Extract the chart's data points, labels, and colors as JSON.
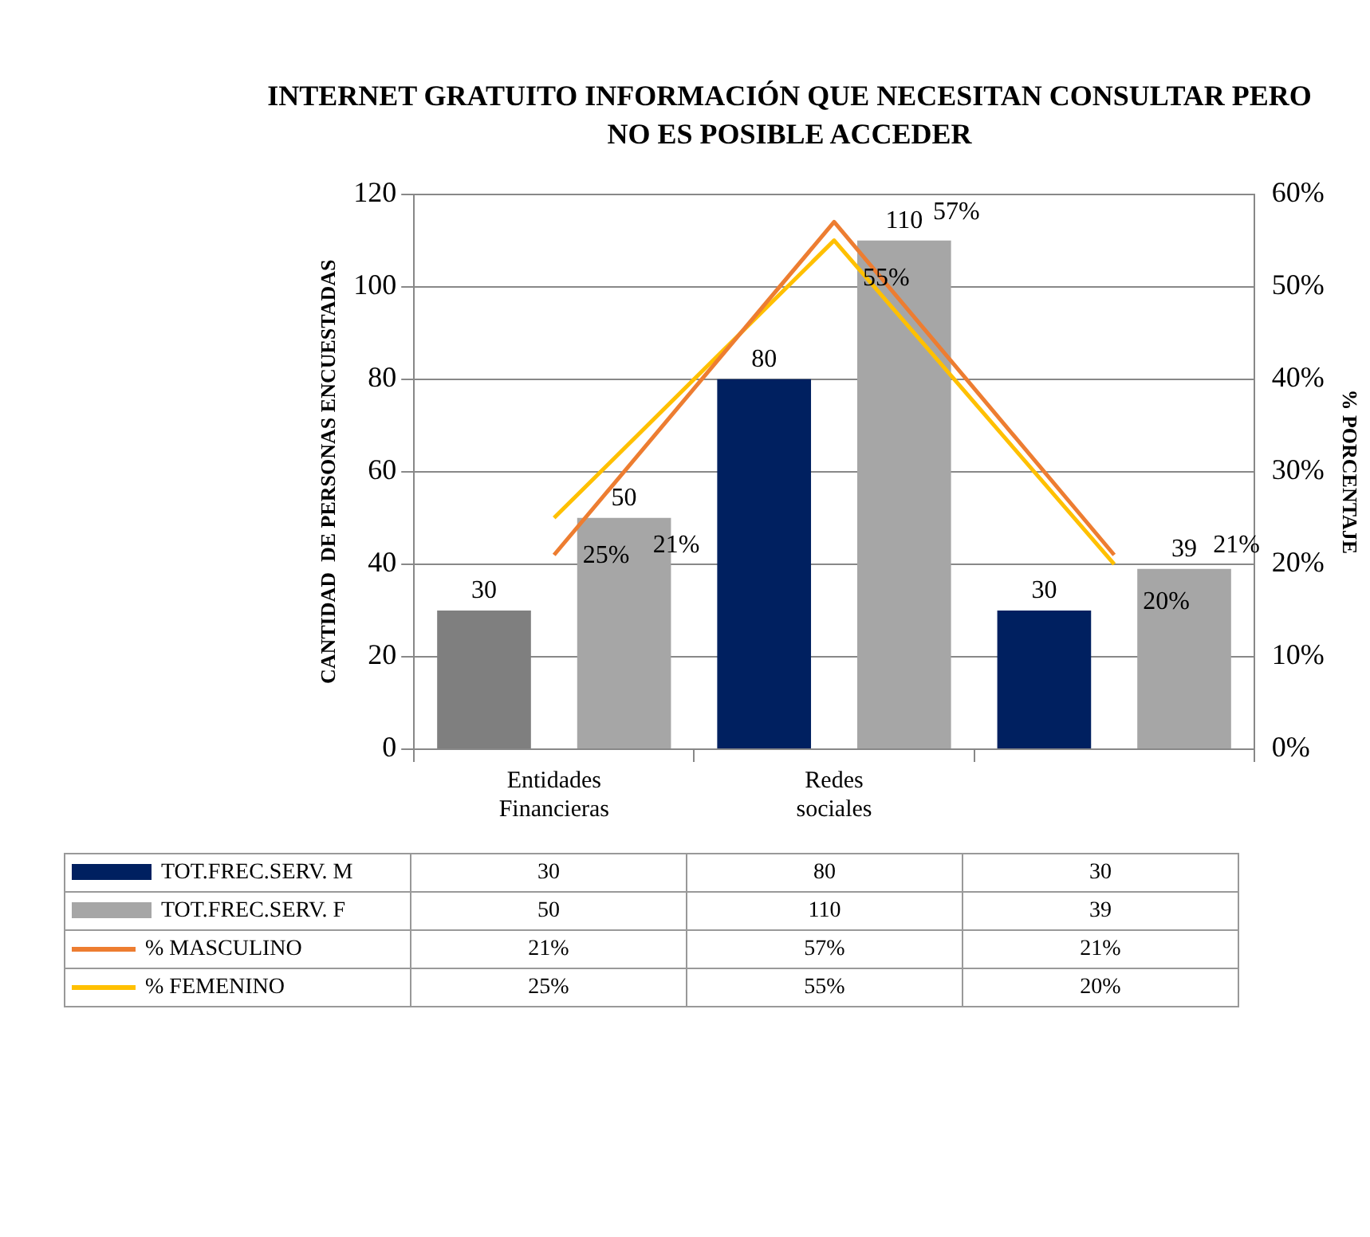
{
  "chart_data": {
    "type": "bar",
    "title": "INTERNET GRATUITO    INFORMACIÓN QUE NECESITAN CONSULTAR PERO NO ES POSIBLE ACCEDER",
    "ylabel": "CANTIDAD  DE PERSONAS ENCUESTADAS",
    "y2label": "% PORCENTAJE",
    "categories": [
      "Entidades Financieras",
      "Redes sociales",
      null
    ],
    "series": [
      {
        "name": "TOT.FREC.SERV. M",
        "color": "#002060",
        "colors": [
          "#7f7f7f",
          "#002060",
          "#002060"
        ],
        "values": [
          30,
          80,
          30
        ],
        "value_labels": [
          "30",
          "80",
          "30"
        ]
      },
      {
        "name": "TOT.FREC.SERV. F",
        "color": "#a6a6a6",
        "values": [
          50,
          110,
          39
        ],
        "value_labels": [
          "50",
          "110",
          "39"
        ]
      },
      {
        "name": "% MASCULINO",
        "type": "line",
        "axis": "y2",
        "color": "#ed7d31",
        "values": [
          21,
          57,
          21
        ],
        "value_labels": [
          "21%",
          "57%",
          "21%"
        ]
      },
      {
        "name": "% FEMENINO",
        "type": "line",
        "axis": "y2",
        "color": "#ffc000",
        "values": [
          25,
          55,
          20
        ],
        "value_labels": [
          "25%",
          "55%",
          "20%"
        ]
      }
    ],
    "ylim": [
      0,
      120
    ],
    "yticks": [
      0,
      20,
      40,
      60,
      80,
      100,
      120
    ],
    "y2lim": [
      0,
      60
    ],
    "y2ticks": [
      {
        "value": 0,
        "label": "0%"
      },
      {
        "value": 10,
        "label": "10%"
      },
      {
        "value": 20,
        "label": "20%"
      },
      {
        "value": 30,
        "label": "30%"
      },
      {
        "value": 40,
        "label": "40%"
      },
      {
        "value": 50,
        "label": "50%"
      },
      {
        "value": 60,
        "label": "60%"
      }
    ],
    "grid": "y",
    "legend": "bottom",
    "data_labels": true,
    "marker": "none"
  }
}
